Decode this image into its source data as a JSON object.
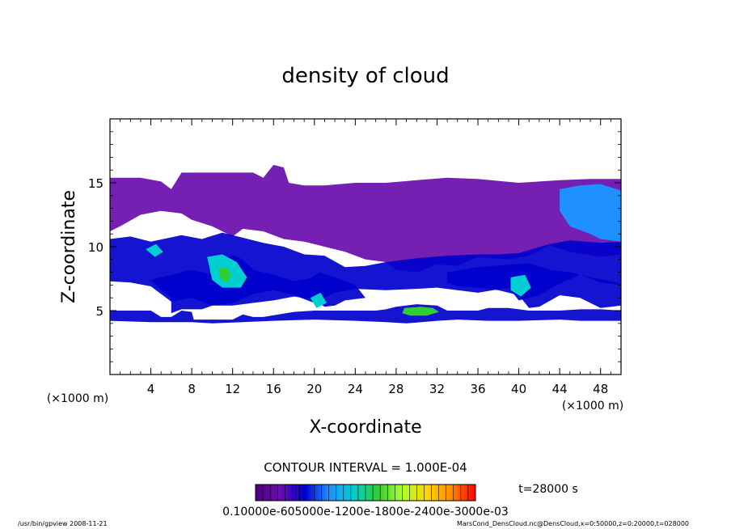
{
  "chart_data": {
    "type": "heatmap",
    "title": "density of cloud",
    "xlabel": "X-coordinate",
    "ylabel": "Z-coordinate",
    "x_unit_left": "(×1000 m)",
    "x_unit_right": "(×1000 m)",
    "xlim": [
      0,
      50
    ],
    "ylim": [
      0,
      20
    ],
    "xticks": [
      4,
      8,
      12,
      16,
      20,
      24,
      28,
      32,
      36,
      40,
      44,
      48
    ],
    "yticks": [
      5,
      10,
      15
    ],
    "contour_interval_text": "CONTOUR INTERVAL = 1.000E-04",
    "time_text": "t=28000 s",
    "colorbar_text": "0.10000e-605000e-1200e-1800e-2400e-3000e-03",
    "colorbar_range": [
      0.0001,
      0.003
    ],
    "footer_left": "/usr/bin/gpview   2008-11-21",
    "footer_right": "MarsCond_DensCloud.nc@DensCloud,x=0:50000,z=0:20000,t=028000",
    "palette": [
      "#4b0082",
      "#6a0dad",
      "#0000cd",
      "#1e90ff",
      "#00ced1",
      "#32cd32",
      "#adff2f",
      "#ffd700",
      "#ff8c00",
      "#ff0000"
    ],
    "regions": [
      {
        "name": "upper-band",
        "level": 0.15,
        "polygon": [
          [
            0,
            15.4
          ],
          [
            3,
            15.4
          ],
          [
            5,
            15.1
          ],
          [
            6,
            14.5
          ],
          [
            7,
            15.8
          ],
          [
            11,
            15.8
          ],
          [
            14,
            15.8
          ],
          [
            15,
            15.4
          ],
          [
            16,
            16.4
          ],
          [
            17,
            16.2
          ],
          [
            17.5,
            15.0
          ],
          [
            19,
            14.8
          ],
          [
            21,
            14.8
          ],
          [
            24,
            15.0
          ],
          [
            27,
            15.0
          ],
          [
            30,
            15.2
          ],
          [
            33,
            15.4
          ],
          [
            36,
            15.3
          ],
          [
            40,
            15.0
          ],
          [
            44,
            15.2
          ],
          [
            47,
            15.3
          ],
          [
            50,
            15.3
          ],
          [
            50,
            9.4
          ],
          [
            48,
            9.2
          ],
          [
            45,
            9.6
          ],
          [
            43,
            10.1
          ],
          [
            41,
            9.3
          ],
          [
            39,
            9.0
          ],
          [
            36,
            9.2
          ],
          [
            34,
            8.5
          ],
          [
            32,
            8.6
          ],
          [
            30,
            8.0
          ],
          [
            28,
            8.2
          ],
          [
            27,
            8.8
          ],
          [
            25,
            9.0
          ],
          [
            23,
            9.6
          ],
          [
            21,
            10.0
          ],
          [
            19,
            10.4
          ],
          [
            17,
            10.6
          ],
          [
            15,
            11.2
          ],
          [
            13,
            11.4
          ],
          [
            12,
            10.8
          ],
          [
            10,
            11.6
          ],
          [
            8,
            12.1
          ],
          [
            7,
            12.6
          ],
          [
            5,
            12.8
          ],
          [
            3,
            12.5
          ],
          [
            1,
            11.6
          ],
          [
            0,
            11.2
          ]
        ]
      },
      {
        "name": "mid-band",
        "level": 0.2,
        "polygon": [
          [
            0,
            10.6
          ],
          [
            2,
            10.8
          ],
          [
            4,
            10.4
          ],
          [
            7,
            10.9
          ],
          [
            9,
            10.6
          ],
          [
            11,
            11.1
          ],
          [
            13,
            10.7
          ],
          [
            15,
            10.3
          ],
          [
            17,
            10.0
          ],
          [
            19,
            9.4
          ],
          [
            21,
            9.3
          ],
          [
            23,
            8.4
          ],
          [
            25,
            8.5
          ],
          [
            27,
            8.8
          ],
          [
            30,
            9.1
          ],
          [
            33,
            9.3
          ],
          [
            36,
            9.4
          ],
          [
            38,
            9.4
          ],
          [
            40,
            9.5
          ],
          [
            43,
            10.2
          ],
          [
            45,
            10.5
          ],
          [
            48,
            10.3
          ],
          [
            50,
            10.4
          ],
          [
            50,
            7.0
          ],
          [
            48,
            7.2
          ],
          [
            46,
            7.8
          ],
          [
            44,
            7.1
          ],
          [
            42,
            6.2
          ],
          [
            40,
            5.8
          ],
          [
            39,
            6.8
          ],
          [
            36,
            6.4
          ],
          [
            34,
            6.6
          ],
          [
            32,
            6.8
          ],
          [
            30,
            6.7
          ],
          [
            27,
            6.6
          ],
          [
            24,
            6.7
          ],
          [
            22,
            6.4
          ],
          [
            20,
            5.6
          ],
          [
            18,
            6.2
          ],
          [
            16,
            6.6
          ],
          [
            14,
            6.3
          ],
          [
            12,
            5.6
          ],
          [
            10,
            5.4
          ],
          [
            8,
            6.0
          ],
          [
            6,
            5.7
          ],
          [
            5,
            6.3
          ],
          [
            4,
            6.9
          ],
          [
            2,
            7.2
          ],
          [
            0,
            7.3
          ]
        ]
      },
      {
        "name": "lower-left-blob",
        "level": 0.2,
        "polygon": [
          [
            4,
            7.4
          ],
          [
            6,
            7.8
          ],
          [
            8,
            8.2
          ],
          [
            10,
            7.8
          ],
          [
            11,
            8.8
          ],
          [
            12,
            9.4
          ],
          [
            13,
            9.0
          ],
          [
            14,
            8.2
          ],
          [
            16,
            7.8
          ],
          [
            18,
            7.3
          ],
          [
            19.5,
            7.5
          ],
          [
            20.5,
            8.0
          ],
          [
            22,
            7.6
          ],
          [
            24,
            7.0
          ],
          [
            25,
            6.0
          ],
          [
            23,
            5.8
          ],
          [
            22,
            5.4
          ],
          [
            21,
            5.3
          ],
          [
            20,
            5.9
          ],
          [
            18,
            6.1
          ],
          [
            16,
            5.8
          ],
          [
            14,
            5.6
          ],
          [
            12,
            5.4
          ],
          [
            10,
            5.4
          ],
          [
            9,
            5.1
          ],
          [
            7,
            5.1
          ],
          [
            6,
            4.8
          ],
          [
            6,
            6.0
          ],
          [
            5,
            6.6
          ]
        ]
      },
      {
        "name": "right-descending",
        "level": 0.22,
        "polygon": [
          [
            33,
            8.0
          ],
          [
            36,
            8.4
          ],
          [
            39,
            8.6
          ],
          [
            41,
            8.7
          ],
          [
            43,
            8.2
          ],
          [
            45,
            8.0
          ],
          [
            47,
            7.6
          ],
          [
            49,
            7.3
          ],
          [
            50,
            7.1
          ],
          [
            50,
            5.4
          ],
          [
            48,
            5.2
          ],
          [
            46,
            6.0
          ],
          [
            44,
            6.2
          ],
          [
            42,
            5.3
          ],
          [
            41,
            5.2
          ],
          [
            40,
            6.2
          ],
          [
            38,
            6.6
          ],
          [
            36,
            6.8
          ],
          [
            34,
            6.9
          ],
          [
            33,
            7.2
          ]
        ]
      },
      {
        "name": "bottom-strip",
        "level": 0.22,
        "polygon": [
          [
            0,
            5.0
          ],
          [
            4,
            5.0
          ],
          [
            5,
            4.5
          ],
          [
            6,
            4.5
          ],
          [
            7,
            5.0
          ],
          [
            8,
            4.9
          ],
          [
            8.2,
            4.3
          ],
          [
            12,
            4.3
          ],
          [
            13,
            4.7
          ],
          [
            14,
            4.5
          ],
          [
            15,
            4.5
          ],
          [
            18,
            4.9
          ],
          [
            20,
            5.0
          ],
          [
            24,
            5.0
          ],
          [
            26,
            5.0
          ],
          [
            27,
            5.1
          ],
          [
            28,
            5.3
          ],
          [
            30,
            5.5
          ],
          [
            32,
            5.4
          ],
          [
            33,
            5.0
          ],
          [
            36,
            5.0
          ],
          [
            37,
            5.2
          ],
          [
            39,
            5.2
          ],
          [
            41,
            5.0
          ],
          [
            44,
            5.0
          ],
          [
            46,
            5.1
          ],
          [
            48,
            5.1
          ],
          [
            50,
            5.0
          ],
          [
            50,
            4.2
          ],
          [
            46,
            4.2
          ],
          [
            44,
            4.3
          ],
          [
            40,
            4.2
          ],
          [
            37,
            4.2
          ],
          [
            34,
            4.3
          ],
          [
            32,
            4.2
          ],
          [
            29,
            4.0
          ],
          [
            27,
            4.1
          ],
          [
            24,
            4.2
          ],
          [
            20,
            4.3
          ],
          [
            16,
            4.2
          ],
          [
            13,
            4.1
          ],
          [
            10,
            4.0
          ],
          [
            8,
            4.1
          ],
          [
            4,
            4.1
          ],
          [
            0,
            4.2
          ]
        ]
      },
      {
        "name": "high-right",
        "level": 0.35,
        "polygon": [
          [
            44,
            14.5
          ],
          [
            46,
            14.8
          ],
          [
            48,
            14.9
          ],
          [
            50,
            14.4
          ],
          [
            50,
            10.4
          ],
          [
            48,
            10.6
          ],
          [
            47,
            11.0
          ],
          [
            45,
            11.6
          ],
          [
            44,
            12.8
          ]
        ]
      },
      {
        "name": "core-left",
        "level": 0.45,
        "polygon": [
          [
            9.5,
            9.2
          ],
          [
            11,
            9.4
          ],
          [
            12.4,
            8.8
          ],
          [
            13.4,
            7.6
          ],
          [
            12.8,
            6.8
          ],
          [
            11,
            6.8
          ],
          [
            10,
            7.4
          ]
        ]
      },
      {
        "name": "core-left-inner",
        "level": 0.6,
        "polygon": [
          [
            10.6,
            8.3
          ],
          [
            11.4,
            8.4
          ],
          [
            11.9,
            7.8
          ],
          [
            11.4,
            7.2
          ],
          [
            10.8,
            7.5
          ]
        ]
      },
      {
        "name": "core-right",
        "level": 0.45,
        "polygon": [
          [
            39.2,
            7.6
          ],
          [
            40.6,
            7.8
          ],
          [
            41.2,
            6.8
          ],
          [
            40.2,
            6.1
          ],
          [
            39.2,
            6.6
          ]
        ]
      },
      {
        "name": "strip-core",
        "level": 0.55,
        "polygon": [
          [
            28.8,
            5.2
          ],
          [
            30.4,
            5.3
          ],
          [
            31.6,
            5.2
          ],
          [
            32.2,
            4.9
          ],
          [
            31,
            4.6
          ],
          [
            29.4,
            4.6
          ],
          [
            28.6,
            4.8
          ]
        ]
      },
      {
        "name": "mid-core",
        "level": 0.4,
        "polygon": [
          [
            3.5,
            9.8
          ],
          [
            4.5,
            10.2
          ],
          [
            5.2,
            9.6
          ],
          [
            4.4,
            9.2
          ]
        ]
      },
      {
        "name": "mid-core-2",
        "level": 0.4,
        "polygon": [
          [
            19.6,
            6.0
          ],
          [
            20.6,
            6.4
          ],
          [
            21.2,
            5.6
          ],
          [
            20.2,
            5.2
          ]
        ]
      }
    ]
  }
}
